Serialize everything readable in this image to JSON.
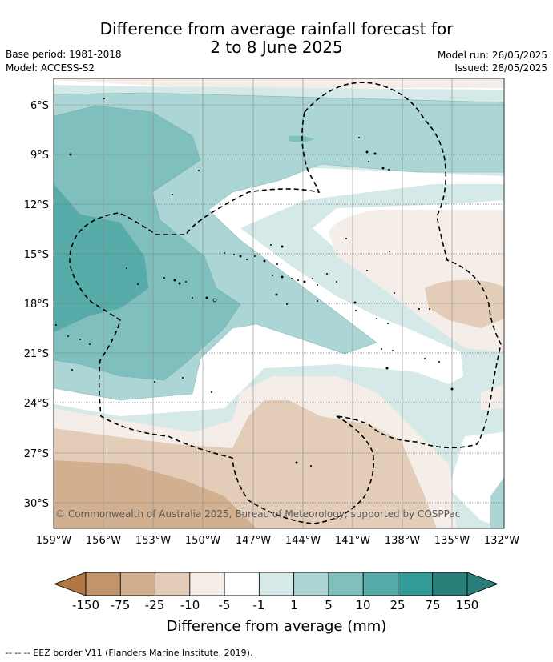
{
  "title": {
    "line1": "Difference from average rainfall forecast for",
    "line2": "2 to 8 June 2025"
  },
  "meta": {
    "base_period": "Base period: 1981-2018",
    "model": "Model: ACCESS-S2",
    "model_run": "Model run: 26/05/2025",
    "issued": "Issued: 28/05/2025"
  },
  "attribution": "© Commonwealth of Australia 2025, Bureau of Meteorology, supported by COSPPac",
  "lat_ticks": [
    "6°S",
    "9°S",
    "12°S",
    "15°S",
    "18°S",
    "21°S",
    "24°S",
    "27°S",
    "30°S"
  ],
  "lon_ticks": [
    "159°W",
    "156°W",
    "153°W",
    "150°W",
    "147°W",
    "144°W",
    "141°W",
    "138°W",
    "135°W",
    "132°W"
  ],
  "colorbar": {
    "labels": [
      "-150",
      "-75",
      "-25",
      "-10",
      "-5",
      "-1",
      "1",
      "5",
      "10",
      "25",
      "75",
      "150"
    ],
    "colors": [
      "#b07840",
      "#c1946a",
      "#d2b08f",
      "#e3cdb9",
      "#f4ede8",
      "#ffffff",
      "#d5e9e8",
      "#abd6d5",
      "#7fc0be",
      "#57aca9",
      "#339b97",
      "#2a7f7b"
    ],
    "title": "Difference from average (mm)"
  },
  "footer": "-- -- -- EEZ border V11 (Flanders Marine Institute, 2019)."
}
